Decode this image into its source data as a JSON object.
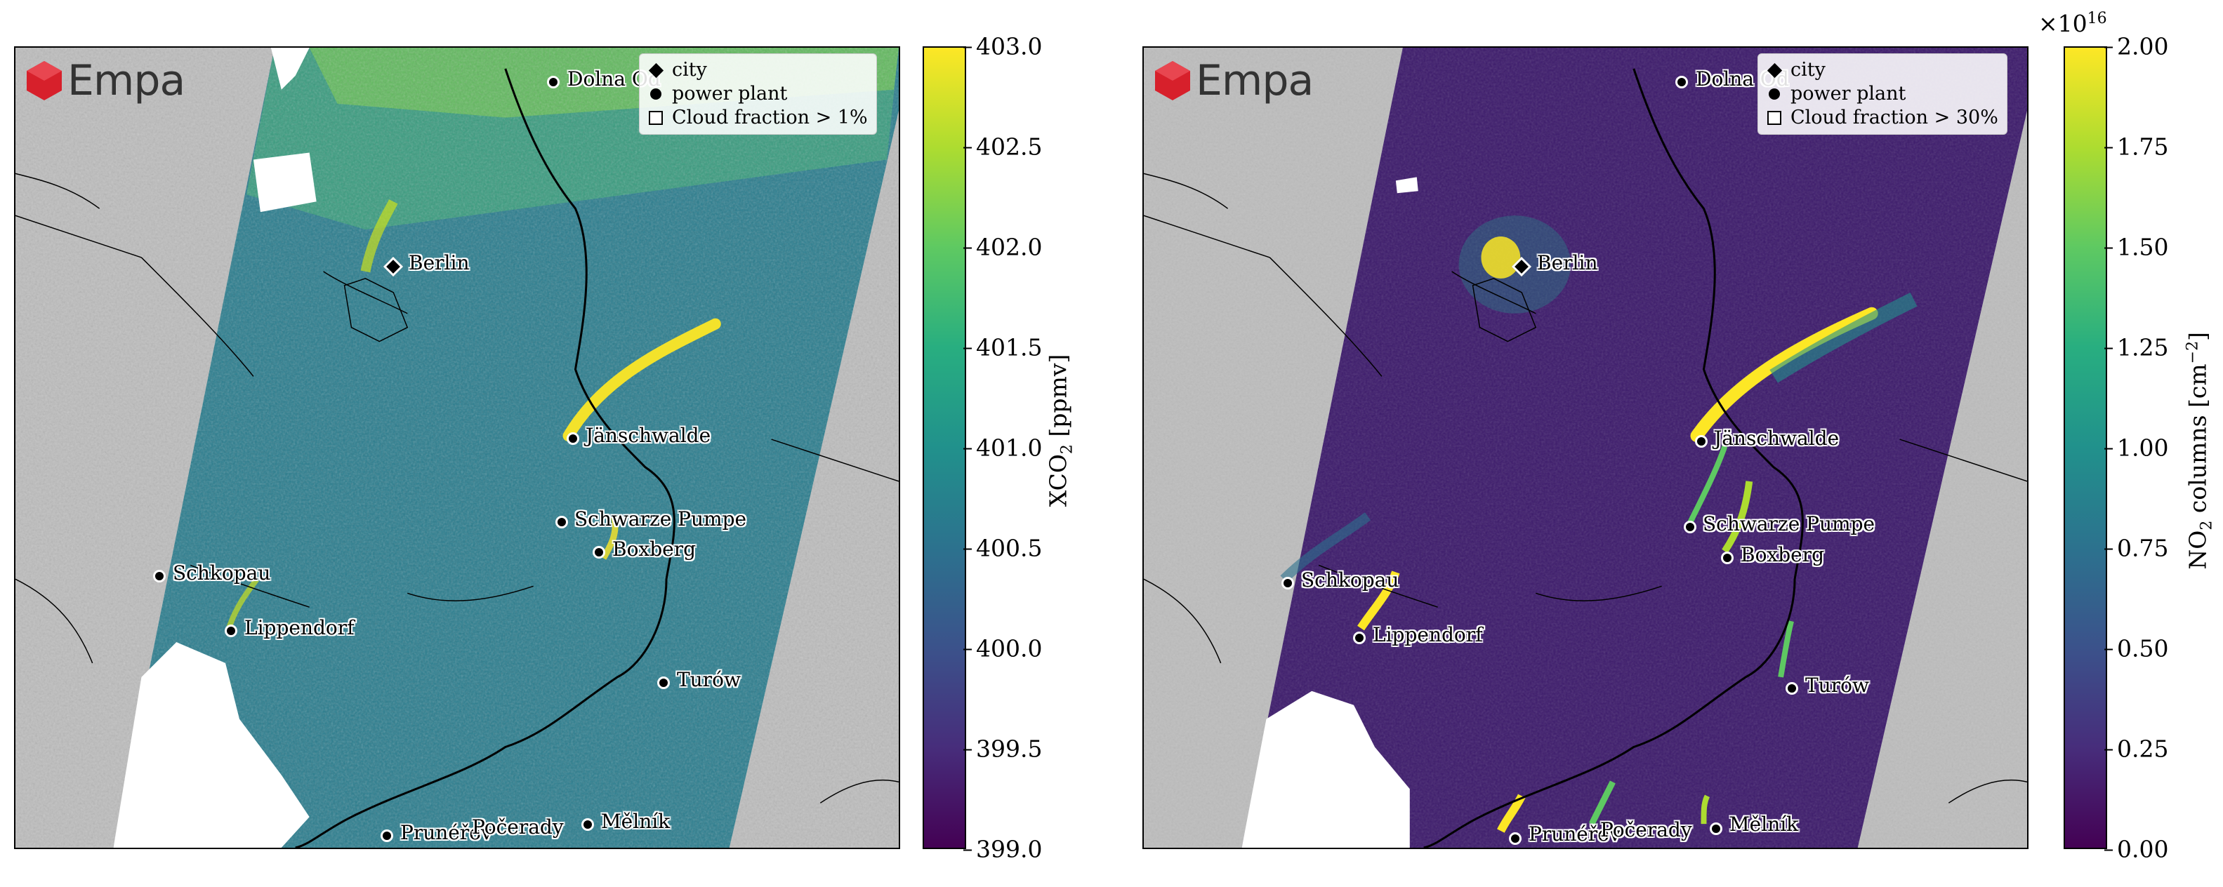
{
  "logo": {
    "text": "Empa"
  },
  "legend_items": [
    "city",
    "power plant"
  ],
  "sites": {
    "dolna": "Dolna Od",
    "berlin": "Berlin",
    "janschwalde": "Jänschwalde",
    "schwarze": "Schwarze Pumpe",
    "boxberg": "Boxberg",
    "schkopau": "Schkopau",
    "lippendorf": "Lippendorf",
    "turow": "Turów",
    "prunerov": "Prunéřov",
    "pocerady": "Počerady",
    "melnik": "Mělník"
  },
  "left": {
    "cloud_legend": "Cloud fraction > 1%",
    "cbar_label_main": "XCO",
    "cbar_label_sub": "2",
    "cbar_label_unit": " [ppmv]",
    "ticks": [
      "403.0",
      "402.5",
      "402.0",
      "401.5",
      "401.0",
      "400.5",
      "400.0",
      "399.5",
      "399.0"
    ]
  },
  "right": {
    "cloud_legend": "Cloud fraction > 30%",
    "cbar_label_pre": "NO",
    "cbar_label_sub": "2",
    "cbar_label_mid": " columns [cm",
    "cbar_label_exp": "−2",
    "cbar_label_end": "]",
    "multiplier_base": "×10",
    "multiplier_exp": "16",
    "ticks": [
      "2.00",
      "1.75",
      "1.50",
      "1.25",
      "1.00",
      "0.75",
      "0.50",
      "0.25",
      "0.00"
    ]
  },
  "chart_data": [
    {
      "type": "heatmap",
      "variable": "XCO2",
      "colorbar_label": "XCO2 [ppmv]",
      "colormap": "viridis",
      "vmin": 399.0,
      "vmax": 403.0,
      "colorbar_ticks": [
        399.0,
        399.5,
        400.0,
        400.5,
        401.0,
        401.5,
        402.0,
        402.5,
        403.0
      ],
      "legend": [
        "city",
        "power plant",
        "Cloud fraction > 1%"
      ],
      "cities": [
        "Dolna Od",
        "Berlin"
      ],
      "power_plants": [
        "Jänschwalde",
        "Schwarze Pumpe",
        "Boxberg",
        "Schkopau",
        "Lippendorf",
        "Turów",
        "Prunéřov",
        "Počerady",
        "Mělník"
      ]
    },
    {
      "type": "heatmap",
      "variable": "NO2 columns",
      "colorbar_label": "NO2 columns [cm−2]",
      "colormap": "viridis",
      "vmin": 0.0,
      "vmax": 2.0,
      "multiplier": "1e16",
      "colorbar_ticks": [
        0.0,
        0.25,
        0.5,
        0.75,
        1.0,
        1.25,
        1.5,
        1.75,
        2.0
      ],
      "legend": [
        "city",
        "power plant",
        "Cloud fraction > 30%"
      ],
      "cities": [
        "Dolna Od",
        "Berlin"
      ],
      "power_plants": [
        "Jänschwalde",
        "Schwarze Pumpe",
        "Boxberg",
        "Schkopau",
        "Lippendorf",
        "Turów",
        "Prunéřov",
        "Počerady",
        "Mělník"
      ]
    }
  ],
  "colors": {
    "viridis": [
      "#440154",
      "#472d7b",
      "#3b528b",
      "#2c728e",
      "#21918c",
      "#28ae80",
      "#5ec962",
      "#addc30",
      "#fde725"
    ],
    "no_data": "#bdbdbd",
    "cloud": "#ffffff"
  }
}
